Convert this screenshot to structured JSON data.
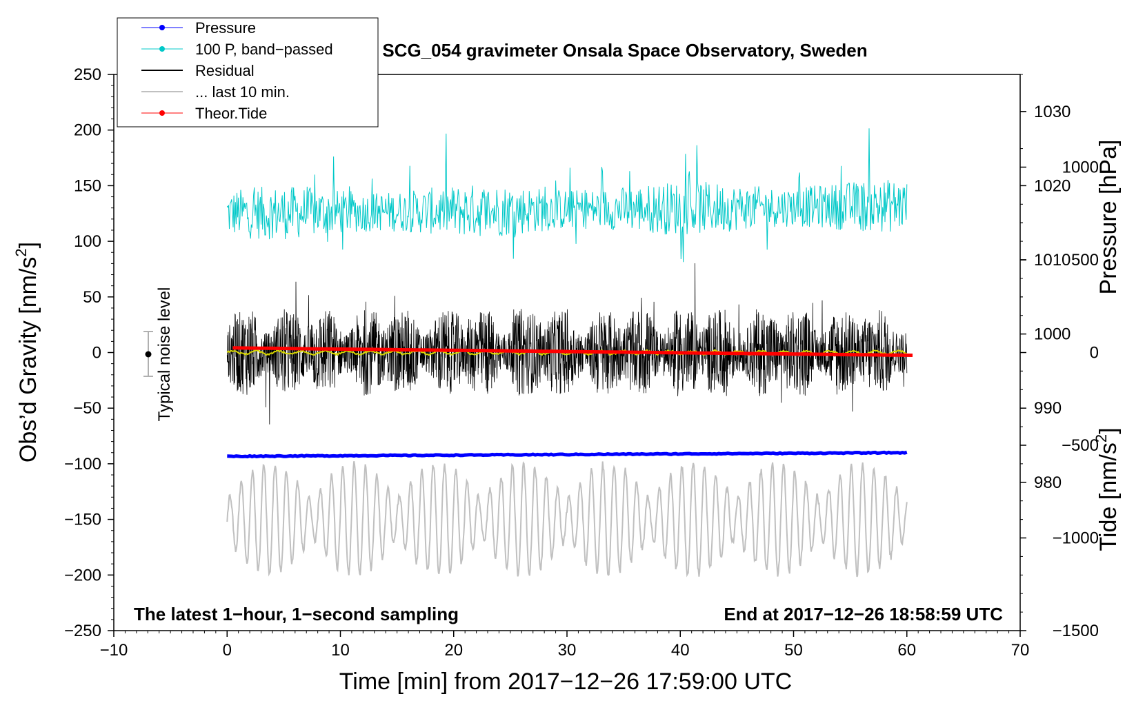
{
  "chart_data": {
    "type": "line",
    "title": "SCG_054 gravimeter Onsala Space Observatory, Sweden",
    "xlabel": "Time [min] from 2017−12−26 17:59:00 UTC",
    "ylabel_left": "Obs’d Gravity [nm/s",
    "ylabel_left_sup": "2",
    "ylabel_left_end": "]",
    "ylabel_right_pressure": "Pressure [hPa]",
    "ylabel_right_tide": "Tide [nm/s",
    "ylabel_right_tide_sup": "2",
    "ylabel_right_tide_end": "]",
    "xlim": [
      -10,
      70
    ],
    "ylim_left": [
      -250,
      250
    ],
    "ylim_pressure": [
      960,
      1035
    ],
    "ylim_tide": [
      -1500,
      1500
    ],
    "x_ticks": [
      "−10",
      "0",
      "10",
      "20",
      "30",
      "40",
      "50",
      "60",
      "70"
    ],
    "y_left_ticks": [
      "250",
      "200",
      "150",
      "100",
      "50",
      "0",
      "−50",
      "−100",
      "−150",
      "−200",
      "−250"
    ],
    "y_pressure_ticks": [
      "1030",
      "1020",
      "1010",
      "1000",
      "990",
      "980"
    ],
    "y_tide_ticks": [
      "1000",
      "500",
      "0",
      "−500",
      "−1000",
      "−1500"
    ],
    "legend": [
      {
        "label": "Pressure",
        "color": "#0000ff",
        "marker": true
      },
      {
        "label": "100 P, band−passed",
        "color": "#00c8c8",
        "marker": true
      },
      {
        "label": "Residual",
        "color": "#000000",
        "marker": false
      },
      {
        "label": "... last 10 min.",
        "color": "#c0c0c0",
        "marker": false
      },
      {
        "label": "Theor.Tide",
        "color": "#ff0000",
        "marker": true
      }
    ],
    "series": [
      {
        "name": "Pressure",
        "axis": "pressure",
        "x_range": [
          0,
          60
        ],
        "start": 983.5,
        "end": 984.0
      },
      {
        "name": "100 P, band-passed",
        "axis": "left",
        "x_range": [
          0,
          60
        ],
        "mean": 125,
        "amplitude": 35
      },
      {
        "name": "Residual",
        "axis": "left",
        "x_range": [
          0,
          60
        ],
        "mean": 0,
        "amplitude": 40
      },
      {
        "name": "Residual smoothed",
        "axis": "left",
        "x_range": [
          0,
          60
        ],
        "mean": 0
      },
      {
        "name": "... last 10 min.",
        "axis": "left",
        "x_range": [
          0,
          60
        ],
        "mean": -150,
        "amplitude": 50
      },
      {
        "name": "Theor.Tide",
        "axis": "tide",
        "x_range": [
          0.5,
          60.5
        ],
        "start": 25,
        "end": -15
      }
    ],
    "noise_marker_label": "Typical noise level",
    "noise_marker": {
      "x": -7,
      "y": 0,
      "range": [
        -20,
        20
      ]
    },
    "annotation_left": "The latest 1−hour, 1−second sampling",
    "annotation_right": "End at 2017−12−26 18:58:59 UTC"
  }
}
